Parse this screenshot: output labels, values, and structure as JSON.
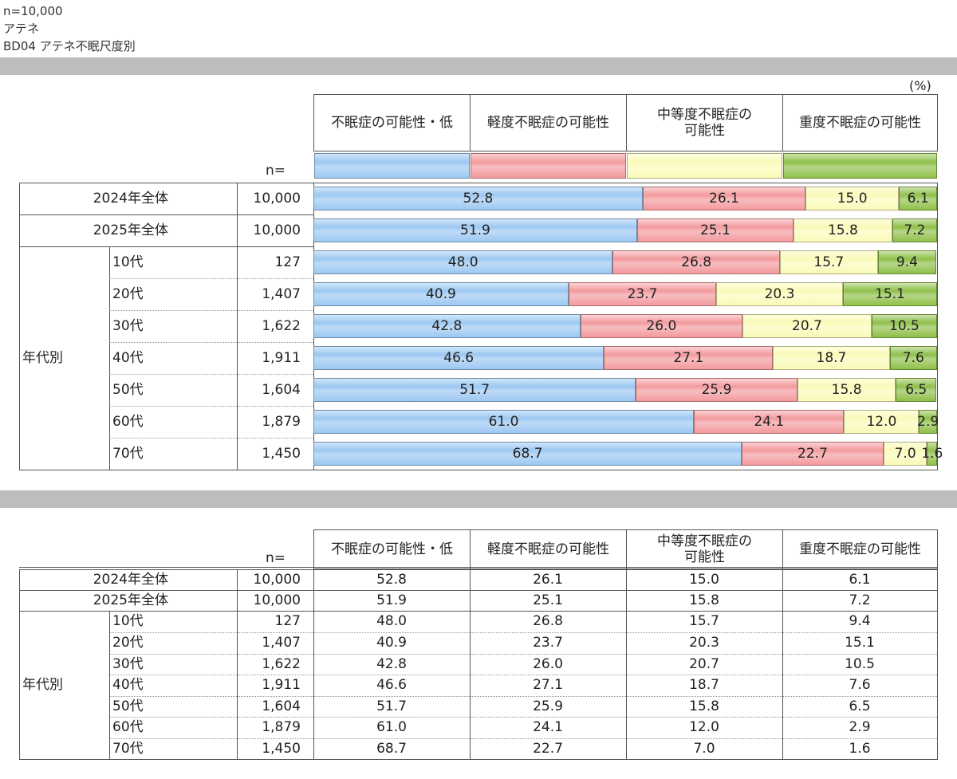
{
  "header": {
    "n_line": "n=10,000",
    "target_line": "アテネ",
    "question_line": "BD04  アテネ不眠尺度別"
  },
  "chart_data": {
    "type": "bar",
    "stacked": "100%",
    "orientation": "horizontal",
    "unit_label": "(%)",
    "n_label": "n=",
    "group_label": "年代別",
    "categories": [
      "2024年全体",
      "2025年全体",
      "10代",
      "20代",
      "30代",
      "40代",
      "50代",
      "60代",
      "70代"
    ],
    "n": [
      "10,000",
      "10,000",
      "127",
      "1,407",
      "1,622",
      "1,911",
      "1,604",
      "1,879",
      "1,450"
    ],
    "series": [
      {
        "name": "不眠症の可能性・低",
        "color": "#9cc8f2",
        "values": [
          52.8,
          51.9,
          48.0,
          40.9,
          42.8,
          46.6,
          51.7,
          61.0,
          68.7
        ]
      },
      {
        "name": "軽度不眠症の可能性",
        "color": "#f39a9e",
        "values": [
          26.1,
          25.1,
          26.8,
          23.7,
          26.0,
          27.1,
          25.9,
          24.1,
          22.7
        ]
      },
      {
        "name": "中等度不眠症の\n可能性",
        "color": "#fafab8",
        "values": [
          15.0,
          15.8,
          15.7,
          20.3,
          20.7,
          18.7,
          15.8,
          12.0,
          7.0
        ]
      },
      {
        "name": "重度不眠症の可能性",
        "color": "#8fc04a",
        "values": [
          6.1,
          7.2,
          9.4,
          15.1,
          10.5,
          7.6,
          6.5,
          2.9,
          1.6
        ]
      }
    ],
    "xlim": [
      0,
      100
    ],
    "legend": "top"
  }
}
